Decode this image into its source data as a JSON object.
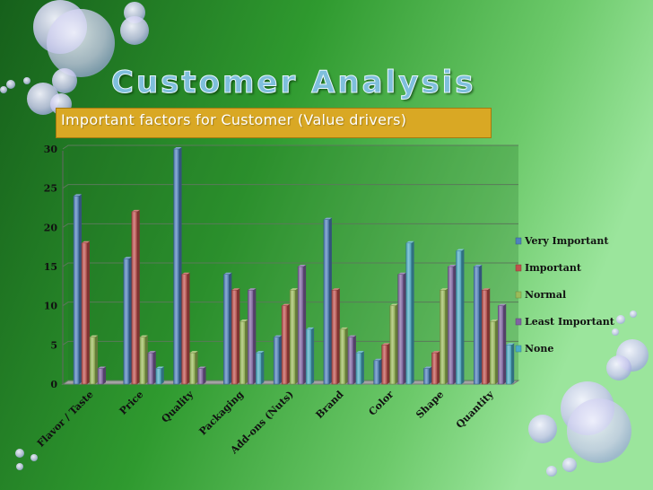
{
  "slide": {
    "title": "Customer Analysis",
    "subtitle": "Important factors for Customer (Value drivers)",
    "background_colors": [
      "#1a6e1f",
      "#3fae3a",
      "#8fe094"
    ]
  },
  "chart_data": {
    "type": "bar",
    "title": "",
    "xlabel": "",
    "ylabel": "",
    "ylim": [
      0,
      30
    ],
    "yticks": [
      0,
      5,
      10,
      15,
      20,
      25,
      30
    ],
    "grid": true,
    "legend_position": "right",
    "categories": [
      "Flavor / Taste",
      "Price",
      "Quality",
      "Packaging",
      "Add-ons (Nuts)",
      "Brand",
      "Color",
      "Shape",
      "Quantity"
    ],
    "series": [
      {
        "name": "Very Important",
        "color": "#4f81bd",
        "values": [
          24,
          16,
          30,
          14,
          6,
          21,
          3,
          2,
          15
        ]
      },
      {
        "name": "Important",
        "color": "#c0504d",
        "values": [
          18,
          22,
          14,
          12,
          10,
          12,
          5,
          4,
          12
        ]
      },
      {
        "name": "Normal",
        "color": "#9bbb59",
        "values": [
          6,
          6,
          4,
          8,
          12,
          7,
          10,
          12,
          8
        ]
      },
      {
        "name": "Least Important",
        "color": "#8064a2",
        "values": [
          2,
          4,
          2,
          12,
          15,
          6,
          14,
          15,
          10
        ]
      },
      {
        "name": "None",
        "color": "#4bacc6",
        "values": [
          0,
          2,
          0,
          4,
          7,
          4,
          18,
          17,
          5
        ]
      }
    ]
  }
}
